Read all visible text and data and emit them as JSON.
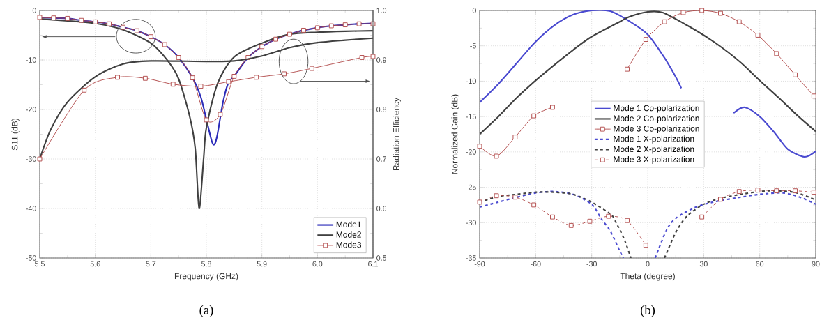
{
  "chart_data": [
    {
      "type": "line",
      "xlabel": "Frequency (GHz)",
      "ylabel": "S11 (dB)",
      "y2label": "Radiation Efficiency",
      "annotations": [
        "(a)"
      ],
      "xlim": [
        5.5,
        6.1
      ],
      "xticks": [
        5.5,
        5.6,
        5.7,
        5.8,
        5.9,
        {
          "value": 6,
          "label": "6.0"
        },
        6.1
      ],
      "ylim": [
        -50,
        0
      ],
      "yticks": [
        -50,
        -40,
        -30,
        -20,
        -10,
        0
      ],
      "y2lim": [
        0.5,
        1
      ],
      "y2ticks": [
        0.5,
        0.6,
        0.7,
        0.8,
        0.9,
        {
          "value": 1,
          "label": "1.0"
        }
      ],
      "grid": true,
      "legend": "bottom right",
      "series": [
        {
          "name": "Mode1",
          "color": "#2b2bb8",
          "marker": "none",
          "x": [
            5.5,
            5.525,
            5.55,
            5.575,
            5.6,
            5.625,
            5.65,
            5.675,
            5.7,
            5.725,
            5.75,
            5.775,
            5.79,
            5.8,
            5.81,
            5.815,
            5.82,
            5.83,
            5.84,
            5.85,
            5.875,
            5.9,
            5.925,
            5.95,
            5.975,
            6.0,
            6.025,
            6.05,
            6.075,
            6.1
          ],
          "values": [
            -1.4,
            -1.5,
            -1.6,
            -2.0,
            -2.3,
            -2.7,
            -3.4,
            -4.1,
            -5.3,
            -6.9,
            -9.5,
            -13.6,
            -17.5,
            -22,
            -26.5,
            -27,
            -25,
            -18.5,
            -14.5,
            -13.3,
            -9.5,
            -7.3,
            -5.8,
            -4.8,
            -4.0,
            -3.5,
            -3.1,
            -2.9,
            -2.7,
            -2.6
          ]
        },
        {
          "name": "Mode2",
          "color": "#404040",
          "marker": "none",
          "x": [
            5.5,
            5.55,
            5.6,
            5.65,
            5.7,
            5.73,
            5.75,
            5.77,
            5.78,
            5.787,
            5.795,
            5.8,
            5.82,
            5.85,
            5.9,
            5.95,
            6.0,
            6.05,
            6.1
          ],
          "values": [
            -1.7,
            -2.1,
            -2.6,
            -3.9,
            -6.6,
            -10.1,
            -13.8,
            -21.4,
            -27.9,
            -40,
            -30,
            -23.7,
            -14.8,
            -9.4,
            -6.6,
            -4.8,
            -4.4,
            -4.2,
            -4.1
          ]
        },
        {
          "name": "Mode3",
          "color": "#b04848",
          "marker": "square",
          "x": [
            5.5,
            5.525,
            5.55,
            5.575,
            5.6,
            5.625,
            5.65,
            5.675,
            5.7,
            5.725,
            5.75,
            5.775,
            5.8,
            5.825,
            5.85,
            5.875,
            5.9,
            5.925,
            5.95,
            5.975,
            6.0,
            6.025,
            6.05,
            6.075,
            6.1
          ],
          "values": [
            -1.4,
            -1.5,
            -1.6,
            -2.0,
            -2.3,
            -2.7,
            -3.4,
            -4.1,
            -5.3,
            -6.9,
            -9.5,
            -13.6,
            -22.1,
            -21.0,
            -13.3,
            -9.5,
            -7.3,
            -5.8,
            -4.8,
            -4.0,
            -3.5,
            -3.1,
            -2.9,
            -2.7,
            -2.7
          ]
        },
        {
          "axis": "y2",
          "color": "#404040",
          "marker": "none",
          "x": [
            5.5,
            5.52,
            5.55,
            5.6,
            5.65,
            5.7,
            5.8,
            5.85,
            5.9,
            5.95,
            6.0,
            6.05,
            6.1
          ],
          "values": [
            0.7,
            0.76,
            0.815,
            0.866,
            0.892,
            0.898,
            0.897,
            0.898,
            0.908,
            0.925,
            0.935,
            0.94,
            0.944
          ]
        },
        {
          "axis": "y2",
          "color": "#b04848",
          "marker": "square",
          "x": [
            5.5,
            5.58,
            5.64,
            5.69,
            5.74,
            5.79,
            5.84,
            5.89,
            5.94,
            5.99,
            6.08,
            6.1
          ],
          "values": [
            0.7,
            0.839,
            0.865,
            0.863,
            0.851,
            0.847,
            0.856,
            0.865,
            0.872,
            0.883,
            0.905,
            0.907
          ]
        }
      ]
    },
    {
      "type": "line",
      "xlabel": "Theta (degree)",
      "ylabel": "Normalized Gain (dB)",
      "annotations": [
        "(b)"
      ],
      "xlim": [
        -90,
        90
      ],
      "xticks": [
        -90,
        -60,
        -30,
        0,
        30,
        60,
        90
      ],
      "ylim": [
        -35,
        0
      ],
      "yticks": [
        -35,
        -30,
        -25,
        -20,
        -15,
        -10,
        -5,
        0
      ],
      "grid": true,
      "legend": "center",
      "series": [
        {
          "name": "Mode 1 Co-polarization",
          "color": "#4a4ad0",
          "marker": "none",
          "line_style": "solid",
          "x": [
            -90,
            -80,
            -70,
            -60,
            -50,
            -40,
            -30,
            -20,
            -10,
            0,
            9,
            15,
            18,
            30,
            46,
            52,
            60,
            68,
            75,
            84,
            90
          ],
          "values": [
            -13.0,
            -10.4,
            -7.4,
            -4.4,
            -2.1,
            -0.6,
            0,
            -0.1,
            -1.5,
            -3.4,
            -6.7,
            -9.4,
            -11.0,
            null,
            -14.5,
            -13.7,
            -15.0,
            -17.3,
            -19.6,
            -20.7,
            -19.9
          ]
        },
        {
          "name": "Mode 2 Co-polarization",
          "color": "#404040",
          "marker": "none",
          "line_style": "solid",
          "x": [
            -90,
            -80,
            -70,
            -60,
            -50,
            -40,
            -30,
            -15,
            -10,
            0,
            8,
            19,
            30,
            40,
            50,
            60,
            70,
            80,
            90
          ],
          "values": [
            -17.5,
            -15.0,
            -12.3,
            -9.9,
            -7.7,
            -5.6,
            -3.7,
            -1.6,
            -0.9,
            -0.2,
            -0.3,
            -1.8,
            -3.5,
            -5.3,
            -7.4,
            -9.9,
            -12.3,
            -14.8,
            -17.1
          ]
        },
        {
          "name": "Mode 3 Co-polarization",
          "color": "#b04848",
          "marker": "square",
          "line_style": "solid",
          "x": [
            -90,
            -81,
            -71,
            -61,
            -51,
            -30,
            -11,
            -1,
            9,
            19,
            29,
            39,
            49,
            59,
            69,
            79,
            89
          ],
          "values": [
            -19.2,
            -20.6,
            -17.9,
            -14.9,
            -13.7,
            null,
            -8.3,
            -4.1,
            -1.6,
            -0.3,
            0,
            -0.4,
            -1.6,
            -3.5,
            -6.1,
            -9.1,
            -12.1
          ]
        },
        {
          "name": "Mode 1 X-polarization",
          "color": "#4a4ad0",
          "marker": "none",
          "line_style": "dashed",
          "x": [
            -90,
            -80,
            -70,
            -60,
            -50,
            -40,
            -30,
            -25,
            -20,
            -15,
            -13,
            0,
            4,
            10,
            15,
            25,
            35,
            47.5,
            60,
            72.5,
            82.5,
            90
          ],
          "values": [
            -27.8,
            -27.1,
            -26.4,
            -25.8,
            -25.6,
            -26.0,
            -27.4,
            -29.4,
            -31.2,
            -34.0,
            -35,
            null,
            -35,
            -31.1,
            -29.4,
            -27.9,
            -27.1,
            -26.5,
            -26.0,
            -25.8,
            -26.5,
            -27.4
          ]
        },
        {
          "name": "Mode 2 X-polarization",
          "color": "#404040",
          "marker": "none",
          "line_style": "dashed",
          "x": [
            -90,
            -80,
            -70,
            -60,
            -50,
            -40,
            -30,
            -20,
            -17.5,
            -12.5,
            -9,
            0,
            9,
            15,
            21,
            30,
            40,
            50,
            60,
            70,
            80,
            90
          ],
          "values": [
            -27.1,
            -26.3,
            -26.0,
            -25.7,
            -25.7,
            -26.0,
            -27.1,
            -28.8,
            -29.7,
            -32.4,
            -35,
            null,
            -35,
            -31.4,
            -29.1,
            -27.4,
            -26.5,
            -26.0,
            -25.6,
            -25.5,
            -25.8,
            -26.8
          ]
        },
        {
          "name": "Mode 3 X-polarization",
          "color": "#b04848",
          "marker": "square",
          "line_style": "dashed",
          "x": [
            -90,
            -81,
            -71,
            -61,
            -51,
            -41,
            -31,
            -21,
            -11,
            -1,
            10,
            29,
            39,
            49,
            59,
            69,
            79,
            89
          ],
          "values": [
            -27.1,
            -26.2,
            -26.4,
            -27.5,
            -29.2,
            -30.4,
            -29.8,
            -29.1,
            -29.7,
            -33.2,
            null,
            -29.2,
            -26.7,
            -25.6,
            -25.4,
            -25.5,
            -25.5,
            -25.7
          ]
        }
      ]
    }
  ]
}
